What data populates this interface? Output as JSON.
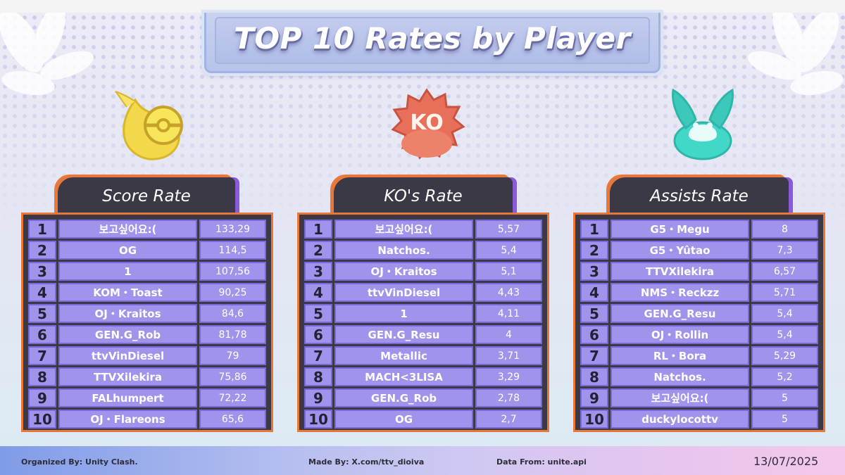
{
  "title": "TOP 10 Rates by Player",
  "colors": {
    "panel_bg": "#3a3945",
    "panel_border": "#e8783a",
    "tab_accent": "#8a5ad8",
    "cell_bg": "#9f93ec",
    "cell_border": "#7868d8",
    "score_icon": "#f2d84a",
    "ko_icon": "#e8705a",
    "assist_icon": "#42d8c8"
  },
  "icons": {
    "score": "score-pokeball-icon",
    "ko": "ko-badge-icon",
    "assists": "assist-bunny-icon"
  },
  "panels": [
    {
      "key": "score",
      "title": "Score Rate",
      "rows": [
        {
          "rank": "1",
          "name": "보고싶어요:(",
          "value": "133,29"
        },
        {
          "rank": "2",
          "name": "OG",
          "value": "114,5"
        },
        {
          "rank": "3",
          "name": "1",
          "value": "107,56"
        },
        {
          "rank": "4",
          "name": "KOM・Toast",
          "value": "90,25"
        },
        {
          "rank": "5",
          "name": "OJ・Kraitos",
          "value": "84,6"
        },
        {
          "rank": "6",
          "name": "GEN.G_Rob",
          "value": "81,78"
        },
        {
          "rank": "7",
          "name": "ttvVinDiesel",
          "value": "79"
        },
        {
          "rank": "8",
          "name": "TTVXilekira",
          "value": "75,86"
        },
        {
          "rank": "9",
          "name": "FALhumpert",
          "value": "72,22"
        },
        {
          "rank": "10",
          "name": "OJ・Flareons",
          "value": "65,6"
        }
      ]
    },
    {
      "key": "ko",
      "title": "KO's Rate",
      "badge_text": "KO",
      "rows": [
        {
          "rank": "1",
          "name": "보고싶어요:(",
          "value": "5,57"
        },
        {
          "rank": "2",
          "name": "Natchos.",
          "value": "5,4"
        },
        {
          "rank": "3",
          "name": "OJ・Kraitos",
          "value": "5,1"
        },
        {
          "rank": "4",
          "name": "ttvVinDiesel",
          "value": "4,43"
        },
        {
          "rank": "5",
          "name": "1",
          "value": "4,11"
        },
        {
          "rank": "6",
          "name": "GEN.G_Resu",
          "value": "4"
        },
        {
          "rank": "7",
          "name": "Metallic",
          "value": "3,71"
        },
        {
          "rank": "8",
          "name": "MACH<3LISA",
          "value": "3,29"
        },
        {
          "rank": "9",
          "name": "GEN.G_Rob",
          "value": "2,78"
        },
        {
          "rank": "10",
          "name": "OG",
          "value": "2,7"
        }
      ]
    },
    {
      "key": "assists",
      "title": "Assists Rate",
      "rows": [
        {
          "rank": "1",
          "name": "G5・Megu",
          "value": "8"
        },
        {
          "rank": "2",
          "name": "G5・Yûtao",
          "value": "7,3"
        },
        {
          "rank": "3",
          "name": "TTVXilekira",
          "value": "6,57"
        },
        {
          "rank": "4",
          "name": "NMS・Reckzz",
          "value": "5,71"
        },
        {
          "rank": "5",
          "name": "GEN.G_Resu",
          "value": "5,4"
        },
        {
          "rank": "6",
          "name": "OJ・Rollin",
          "value": "5,4"
        },
        {
          "rank": "7",
          "name": "RL・Bora",
          "value": "5,29"
        },
        {
          "rank": "8",
          "name": "Natchos.",
          "value": "5,2"
        },
        {
          "rank": "9",
          "name": "보고싶어요:(",
          "value": "5"
        },
        {
          "rank": "10",
          "name": "duckylocottv",
          "value": "5"
        }
      ]
    }
  ],
  "footer": {
    "organized": "Organized By: Unity Clash.",
    "made": "Made By: X.com/ttv_dioiva",
    "data_from": "Data From: unite.api",
    "date": "13/07/2025"
  }
}
